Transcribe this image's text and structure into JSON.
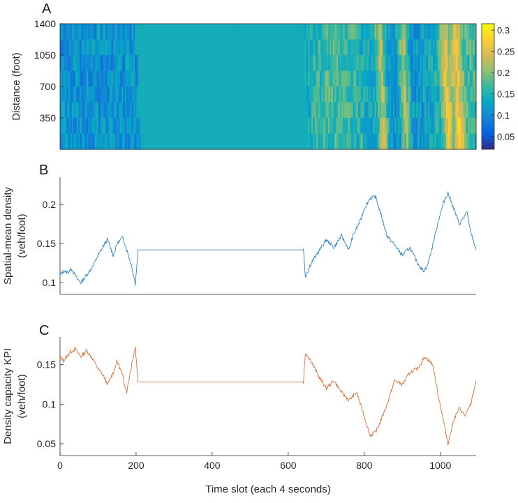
{
  "colors": {
    "line_b": "#2e86c1",
    "line_c": "#d9703a",
    "axis": "#262626",
    "colormap": [
      "#352a87",
      "#0363e1",
      "#1485d4",
      "#06a7c6",
      "#38b99e",
      "#92bf73",
      "#d9ba56",
      "#fcce2e",
      "#f9fb0e"
    ]
  },
  "chart_data": [
    {
      "panel": "A",
      "type": "heatmap",
      "ylabel": "Distance (foot)",
      "yticks": [
        350,
        700,
        1050,
        1400
      ],
      "ylim": [
        0,
        1400
      ],
      "xlim": [
        0,
        1094
      ],
      "flat_segment": {
        "x_start": 200,
        "x_end": 640,
        "value": 0.142
      },
      "colorbar": {
        "ticks": [
          0.05,
          0.1,
          0.15,
          0.2,
          0.25,
          0.3
        ],
        "range": [
          0.02,
          0.315
        ]
      },
      "high_density_bands_x": [
        840,
        900,
        1010,
        1040
      ]
    },
    {
      "panel": "B",
      "type": "line",
      "ylabel_line1": "Spatial-mean density",
      "ylabel_line2": "(veh/foot)",
      "yticks": [
        0.1,
        0.15,
        0.2
      ],
      "ylim": [
        0.085,
        0.235
      ],
      "xlim": [
        0,
        1094
      ],
      "series": [
        {
          "name": "spatial-mean density",
          "x": [
            0,
            10,
            20,
            30,
            45,
            55,
            70,
            85,
            100,
            115,
            125,
            140,
            150,
            165,
            180,
            190,
            198,
            205,
            640,
            645,
            660,
            680,
            700,
            720,
            740,
            760,
            770,
            790,
            800,
            815,
            830,
            845,
            860,
            880,
            900,
            920,
            940,
            955,
            965,
            980,
            995,
            1010,
            1020,
            1035,
            1050,
            1070,
            1080,
            1094
          ],
          "y": [
            0.11,
            0.115,
            0.113,
            0.118,
            0.105,
            0.1,
            0.11,
            0.12,
            0.135,
            0.148,
            0.155,
            0.135,
            0.15,
            0.158,
            0.135,
            0.118,
            0.098,
            0.142,
            0.142,
            0.108,
            0.125,
            0.14,
            0.155,
            0.145,
            0.16,
            0.142,
            0.16,
            0.18,
            0.195,
            0.208,
            0.21,
            0.185,
            0.16,
            0.148,
            0.135,
            0.145,
            0.125,
            0.115,
            0.12,
            0.148,
            0.18,
            0.205,
            0.215,
            0.195,
            0.175,
            0.19,
            0.165,
            0.142
          ]
        }
      ]
    },
    {
      "panel": "C",
      "type": "line",
      "ylabel_line1": "Density capacity KPI",
      "ylabel_line2": "(veh/foot)",
      "yticks": [
        0.05,
        0.1,
        0.15
      ],
      "ylim": [
        0.035,
        0.185
      ],
      "xlabel": "Time slot (each 4 seconds)",
      "xticks": [
        0,
        200,
        400,
        600,
        800,
        1000
      ],
      "xlim": [
        0,
        1094
      ],
      "series": [
        {
          "name": "density capacity KPI",
          "x": [
            0,
            10,
            25,
            40,
            55,
            70,
            85,
            100,
            115,
            125,
            140,
            150,
            165,
            175,
            190,
            198,
            205,
            640,
            645,
            660,
            680,
            700,
            720,
            740,
            760,
            780,
            800,
            815,
            830,
            840,
            860,
            880,
            900,
            920,
            940,
            960,
            980,
            995,
            1010,
            1020,
            1035,
            1050,
            1065,
            1080,
            1094
          ],
          "y": [
            0.16,
            0.155,
            0.165,
            0.17,
            0.16,
            0.168,
            0.158,
            0.145,
            0.135,
            0.125,
            0.14,
            0.155,
            0.135,
            0.115,
            0.155,
            0.172,
            0.128,
            0.128,
            0.165,
            0.155,
            0.135,
            0.12,
            0.13,
            0.115,
            0.105,
            0.115,
            0.085,
            0.06,
            0.065,
            0.075,
            0.1,
            0.13,
            0.125,
            0.14,
            0.145,
            0.16,
            0.15,
            0.11,
            0.075,
            0.05,
            0.08,
            0.095,
            0.085,
            0.1,
            0.13
          ]
        }
      ]
    }
  ]
}
